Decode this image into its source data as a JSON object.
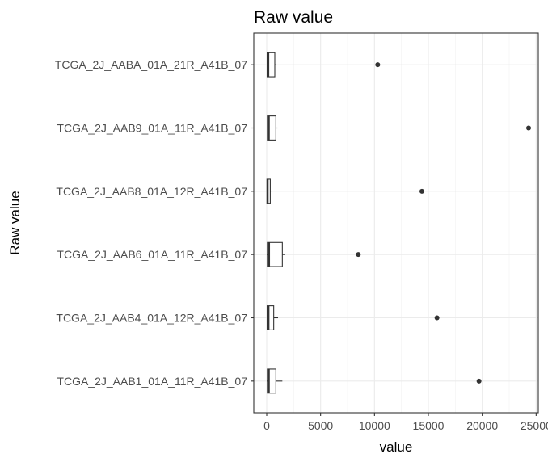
{
  "chart_data": {
    "type": "boxplot",
    "orientation": "horizontal",
    "title": "Raw value",
    "xlabel": "value",
    "ylabel": "Raw value",
    "xlim": [
      -1200,
      25200
    ],
    "x_ticks": [
      0,
      5000,
      10000,
      15000,
      20000,
      25000
    ],
    "x_tick_labels": [
      "0",
      "5000",
      "10000",
      "15000",
      "20000",
      "25000"
    ],
    "grid": true,
    "categories": [
      "TCGA_2J_AABA_01A_21R_A41B_07",
      "TCGA_2J_AAB9_01A_11R_A41B_07",
      "TCGA_2J_AAB8_01A_12R_A41B_07",
      "TCGA_2J_AAB6_01A_11R_A41B_07",
      "TCGA_2J_AAB4_01A_12R_A41B_07",
      "TCGA_2J_AAB1_01A_11R_A41B_07"
    ],
    "boxes": [
      {
        "category": "TCGA_2J_AABA_01A_21R_A41B_07",
        "min": 0,
        "q1": 40,
        "median": 150,
        "q3": 750,
        "max": 820,
        "outliers": [
          10300
        ]
      },
      {
        "category": "TCGA_2J_AAB9_01A_11R_A41B_07",
        "min": 0,
        "q1": 60,
        "median": 200,
        "q3": 850,
        "max": 1000,
        "outliers": [
          24300
        ]
      },
      {
        "category": "TCGA_2J_AAB8_01A_12R_A41B_07",
        "min": 0,
        "q1": 20,
        "median": 90,
        "q3": 330,
        "max": 380,
        "outliers": [
          14400
        ]
      },
      {
        "category": "TCGA_2J_AAB6_01A_11R_A41B_07",
        "min": 0,
        "q1": 60,
        "median": 220,
        "q3": 1450,
        "max": 1700,
        "outliers": [
          8500
        ]
      },
      {
        "category": "TCGA_2J_AAB4_01A_12R_A41B_07",
        "min": 0,
        "q1": 40,
        "median": 170,
        "q3": 650,
        "max": 1050,
        "outliers": [
          15800
        ]
      },
      {
        "category": "TCGA_2J_AAB1_01A_11R_A41B_07",
        "min": 0,
        "q1": 60,
        "median": 200,
        "q3": 850,
        "max": 1450,
        "outliers": [
          19700
        ]
      }
    ]
  }
}
